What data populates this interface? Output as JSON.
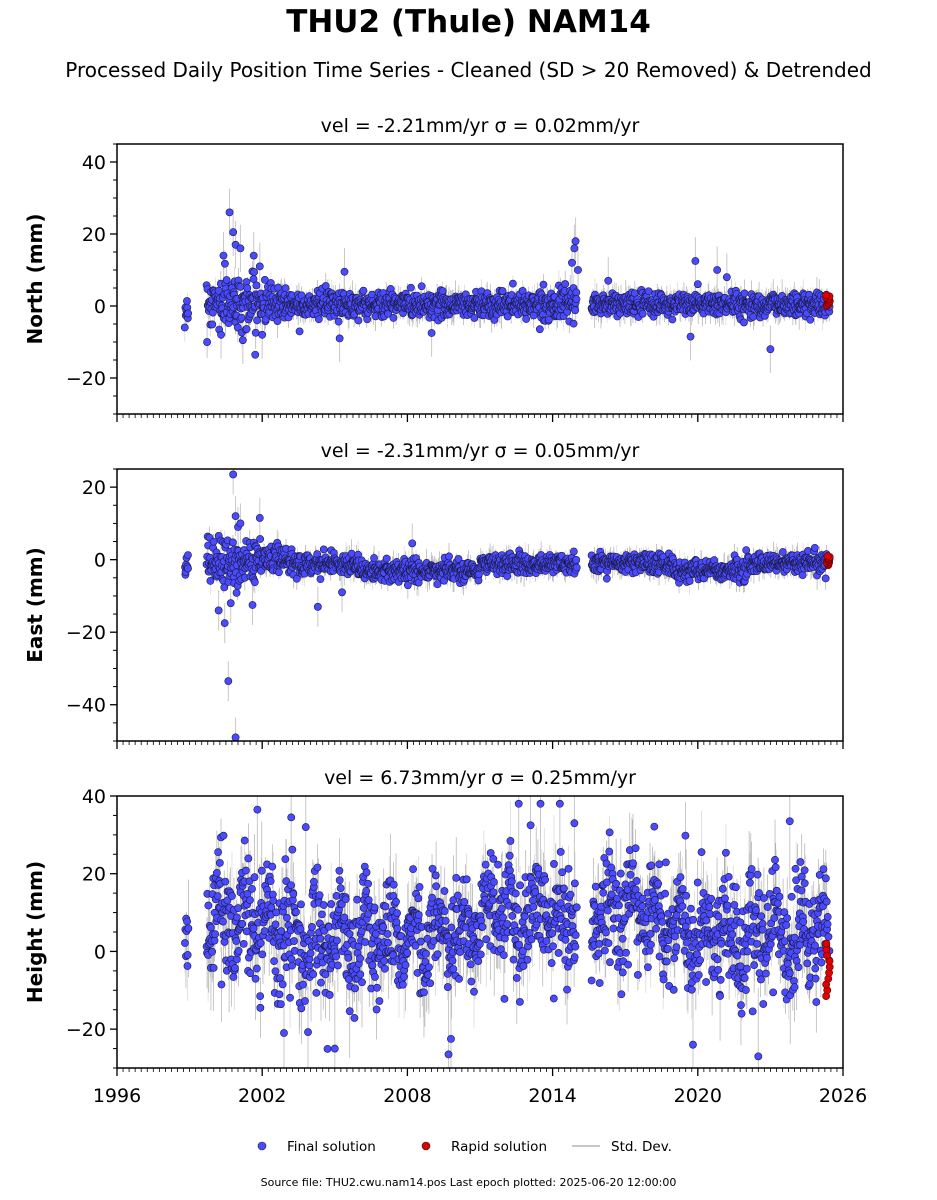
{
  "figure": {
    "title": "THU2 (Thule) NAM14",
    "subtitle": "Processed Daily Position Time Series - Cleaned (SD > 20 Removed) & Detrended",
    "footer": "Source file: THU2.cwu.nam14.pos  Last epoch plotted: 2025-06-20 12:00:00"
  },
  "colors": {
    "final": "#4a4aff",
    "rapid": "#e00000",
    "std_dev": "#000000",
    "marker_edge": "#1a1a40"
  },
  "legend": {
    "position": "bottom-center",
    "items": [
      {
        "label": "Final solution",
        "color": "#4a4aff",
        "kind": "marker"
      },
      {
        "label": "Rapid solution",
        "color": "#e00000",
        "kind": "marker"
      },
      {
        "label": "Std. Dev.",
        "color": "#c8c8c8",
        "kind": "line"
      }
    ]
  },
  "chart_data": [
    {
      "type": "scatter",
      "title": "vel = -2.21mm/yr   σ = 0.02mm/yr",
      "ylabel": "North (mm)",
      "xlim": [
        1996,
        2026
      ],
      "ylim": [
        -30,
        45
      ],
      "yticks": [
        -20,
        0,
        20,
        40
      ],
      "xticks": [
        1996,
        2002,
        2008,
        2014,
        2020,
        2026
      ],
      "show_xtick_labels": false,
      "spread": 2.0,
      "errbar": 3.0,
      "envelope": [
        {
          "start": 1998.8,
          "end": 1998.95,
          "mean": -1,
          "sd": 2.0
        },
        {
          "start": 1999.7,
          "end": 2001.8,
          "mean": 1,
          "sd": 4.0
        },
        {
          "start": 2001.8,
          "end": 2003.0,
          "mean": 1,
          "sd": 3.0
        },
        {
          "start": 2003.0,
          "end": 2015.0,
          "mean": 0.5,
          "sd": 2.0
        },
        {
          "start": 2015.6,
          "end": 2025.45,
          "mean": 0.5,
          "sd": 1.8
        }
      ],
      "outliers": [
        {
          "x": 2000.65,
          "y": 26
        },
        {
          "x": 2000.8,
          "y": 20.5
        },
        {
          "x": 2000.9,
          "y": 17
        },
        {
          "x": 2001.1,
          "y": 16
        },
        {
          "x": 2000.4,
          "y": 14
        },
        {
          "x": 2001.65,
          "y": 14
        },
        {
          "x": 2001.9,
          "y": 11
        },
        {
          "x": 2000.3,
          "y": -8
        },
        {
          "x": 2001.2,
          "y": -9.5
        },
        {
          "x": 2002.0,
          "y": -8
        },
        {
          "x": 2005.2,
          "y": -9
        },
        {
          "x": 2005.4,
          "y": 9.5
        },
        {
          "x": 2009.0,
          "y": -7.5
        },
        {
          "x": 2014.95,
          "y": 18
        },
        {
          "x": 2014.9,
          "y": 16
        },
        {
          "x": 2014.8,
          "y": 12
        },
        {
          "x": 2015.05,
          "y": 10
        },
        {
          "x": 2016.3,
          "y": 7
        },
        {
          "x": 2019.7,
          "y": -8.5
        },
        {
          "x": 2019.9,
          "y": 12.5
        },
        {
          "x": 2020.8,
          "y": 10
        },
        {
          "x": 2023.0,
          "y": -12
        },
        {
          "x": 2021.2,
          "y": 8
        }
      ],
      "rapid": {
        "start": 2025.3,
        "end": 2025.46,
        "ymin": 0,
        "ymax": 3
      }
    },
    {
      "type": "scatter",
      "title": "vel = -2.31mm/yr   σ = 0.05mm/yr",
      "ylabel": "East (mm)",
      "xlim": [
        1996,
        2026
      ],
      "ylim": [
        -50,
        25
      ],
      "yticks": [
        -40,
        -20,
        0,
        20
      ],
      "xticks": [
        1996,
        2002,
        2008,
        2014,
        2020,
        2026
      ],
      "show_xtick_labels": false,
      "spread": 1.5,
      "errbar": 2.5,
      "envelope": [
        {
          "start": 1998.8,
          "end": 1998.95,
          "mean": -2,
          "sd": 2.0
        },
        {
          "start": 1999.7,
          "end": 2001.8,
          "mean": -1,
          "sd": 3.5
        },
        {
          "start": 2001.8,
          "end": 2003.0,
          "mean": 0,
          "sd": 2.5
        },
        {
          "start": 2003.0,
          "end": 2006.0,
          "mean": -1,
          "sd": 1.6
        },
        {
          "start": 2006.0,
          "end": 2011.0,
          "mean": -3,
          "sd": 1.5
        },
        {
          "start": 2011.0,
          "end": 2015.0,
          "mean": -1,
          "sd": 1.5
        },
        {
          "start": 2015.6,
          "end": 2019.0,
          "mean": -1,
          "sd": 1.5
        },
        {
          "start": 2019.0,
          "end": 2022.0,
          "mean": -3,
          "sd": 1.6
        },
        {
          "start": 2022.0,
          "end": 2025.45,
          "mean": -1,
          "sd": 1.5
        }
      ],
      "outliers": [
        {
          "x": 2000.8,
          "y": 23.5
        },
        {
          "x": 2000.9,
          "y": 12
        },
        {
          "x": 2001.0,
          "y": 9
        },
        {
          "x": 2001.1,
          "y": 10
        },
        {
          "x": 2001.9,
          "y": 11.5
        },
        {
          "x": 2000.2,
          "y": -14
        },
        {
          "x": 2000.45,
          "y": -17.5
        },
        {
          "x": 2000.6,
          "y": -33.5
        },
        {
          "x": 2000.9,
          "y": -49
        },
        {
          "x": 2000.7,
          "y": -12
        },
        {
          "x": 2001.6,
          "y": -12.5
        },
        {
          "x": 2004.3,
          "y": -13
        },
        {
          "x": 2005.3,
          "y": -9
        },
        {
          "x": 2008.2,
          "y": 4.5
        }
      ],
      "rapid": {
        "start": 2025.3,
        "end": 2025.46,
        "ymin": -1.5,
        "ymax": 1
      }
    },
    {
      "type": "scatter",
      "title": "vel = 6.73mm/yr   σ = 0.25mm/yr",
      "ylabel": "Height (mm)",
      "xlim": [
        1996,
        2026
      ],
      "ylim": [
        -30,
        40
      ],
      "yticks": [
        -20,
        0,
        20,
        40
      ],
      "xticks": [
        1996,
        2002,
        2008,
        2014,
        2020,
        2026
      ],
      "xtick_labels": [
        "1996",
        "2002",
        "2008",
        "2014",
        "2020",
        "2026"
      ],
      "show_xtick_labels": true,
      "spread": 5.5,
      "errbar": 8.0,
      "envelope": [
        {
          "start": 1998.8,
          "end": 1998.95,
          "mean": 5,
          "sd": 8.0
        },
        {
          "start": 1999.7,
          "end": 2003.0,
          "mean": 8,
          "sd": 8.5
        },
        {
          "start": 2003.0,
          "end": 2008.0,
          "mean": 3,
          "sd": 7.5
        },
        {
          "start": 2008.0,
          "end": 2011.0,
          "mean": 5,
          "sd": 7.0
        },
        {
          "start": 2011.0,
          "end": 2015.0,
          "mean": 10,
          "sd": 7.5
        },
        {
          "start": 2015.6,
          "end": 2019.0,
          "mean": 10,
          "sd": 7.5
        },
        {
          "start": 2019.0,
          "end": 2025.45,
          "mean": 5,
          "sd": 8.0
        }
      ],
      "outliers": [
        {
          "x": 2001.8,
          "y": 36.5
        },
        {
          "x": 2003.2,
          "y": 34.5
        },
        {
          "x": 2003.8,
          "y": 32
        },
        {
          "x": 2009.7,
          "y": -26.5
        },
        {
          "x": 2009.8,
          "y": -22.5
        },
        {
          "x": 2012.6,
          "y": 38
        },
        {
          "x": 2013.5,
          "y": 38
        },
        {
          "x": 2014.3,
          "y": 38
        },
        {
          "x": 2014.9,
          "y": 33
        },
        {
          "x": 2023.8,
          "y": 33.5
        },
        {
          "x": 2022.5,
          "y": -27
        },
        {
          "x": 2005.0,
          "y": -25
        },
        {
          "x": 2019.8,
          "y": -24
        },
        {
          "x": 2002.9,
          "y": -21
        }
      ],
      "rapid": {
        "start": 2025.3,
        "end": 2025.46,
        "ymin": -11.5,
        "ymax": 2
      }
    }
  ]
}
